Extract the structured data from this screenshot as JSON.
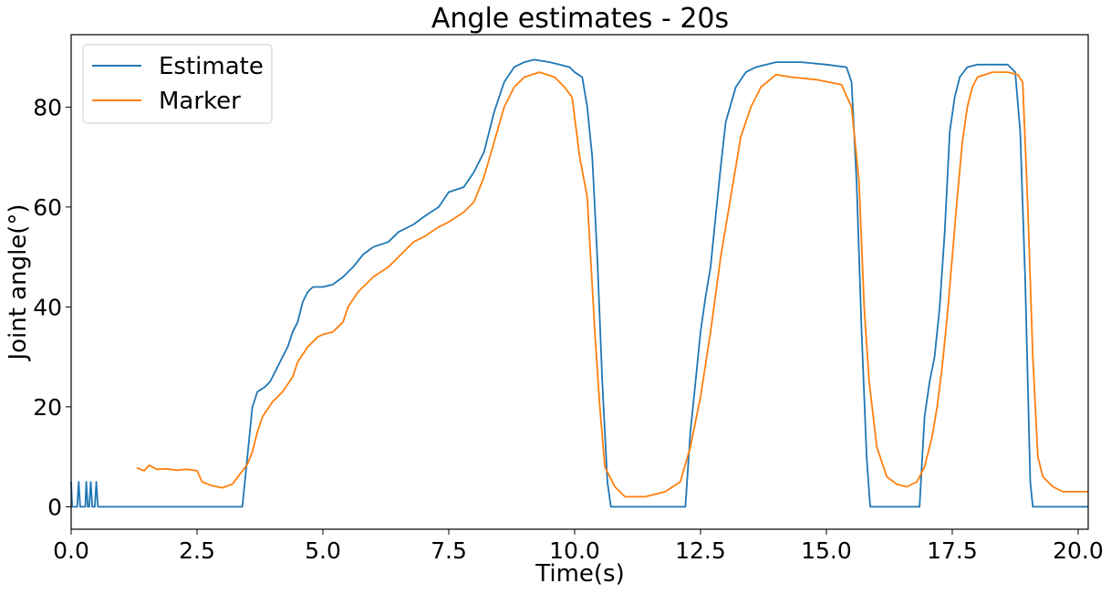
{
  "chart_data": {
    "type": "line",
    "title": "Angle estimates - 20s",
    "xlabel": "Time(s)",
    "ylabel": "Joint angle(°)",
    "xlim": [
      0,
      20.2
    ],
    "ylim": [
      -4.5,
      94.5
    ],
    "xticks": [
      0.0,
      2.5,
      5.0,
      7.5,
      10.0,
      12.5,
      15.0,
      17.5,
      20.0
    ],
    "xtick_labels": [
      "0.0",
      "2.5",
      "5.0",
      "7.5",
      "10.0",
      "12.5",
      "15.0",
      "17.5",
      "20.0"
    ],
    "yticks": [
      0,
      20,
      40,
      60,
      80
    ],
    "ytick_labels": [
      "0",
      "20",
      "40",
      "60",
      "80"
    ],
    "grid": false,
    "legend_position": "top-left",
    "series": [
      {
        "name": "Estimate",
        "color": "#1f77b4",
        "points": [
          [
            0.0,
            5
          ],
          [
            0.02,
            0
          ],
          [
            0.12,
            0
          ],
          [
            0.15,
            5
          ],
          [
            0.18,
            0
          ],
          [
            0.28,
            0
          ],
          [
            0.3,
            5
          ],
          [
            0.33,
            0
          ],
          [
            0.36,
            0
          ],
          [
            0.39,
            5
          ],
          [
            0.42,
            0
          ],
          [
            0.47,
            0
          ],
          [
            0.5,
            5
          ],
          [
            0.53,
            0
          ],
          [
            3.4,
            0
          ],
          [
            3.5,
            10
          ],
          [
            3.6,
            20
          ],
          [
            3.7,
            23
          ],
          [
            3.85,
            24
          ],
          [
            3.95,
            25
          ],
          [
            4.0,
            26
          ],
          [
            4.1,
            28
          ],
          [
            4.2,
            30
          ],
          [
            4.3,
            32
          ],
          [
            4.4,
            35
          ],
          [
            4.5,
            37
          ],
          [
            4.6,
            41
          ],
          [
            4.7,
            43
          ],
          [
            4.8,
            44
          ],
          [
            5.0,
            44
          ],
          [
            5.2,
            44.5
          ],
          [
            5.4,
            46
          ],
          [
            5.6,
            48
          ],
          [
            5.8,
            50.5
          ],
          [
            6.0,
            52
          ],
          [
            6.3,
            53
          ],
          [
            6.5,
            55
          ],
          [
            6.8,
            56.5
          ],
          [
            7.0,
            58
          ],
          [
            7.3,
            60
          ],
          [
            7.5,
            63
          ],
          [
            7.8,
            64
          ],
          [
            8.0,
            67
          ],
          [
            8.2,
            71
          ],
          [
            8.4,
            79
          ],
          [
            8.6,
            85
          ],
          [
            8.8,
            88
          ],
          [
            9.0,
            89
          ],
          [
            9.2,
            89.5
          ],
          [
            9.5,
            89
          ],
          [
            9.7,
            88.5
          ],
          [
            9.9,
            88
          ],
          [
            10.0,
            87
          ],
          [
            10.15,
            86
          ],
          [
            10.25,
            80
          ],
          [
            10.35,
            70
          ],
          [
            10.45,
            50
          ],
          [
            10.55,
            25
          ],
          [
            10.65,
            5
          ],
          [
            10.72,
            0
          ],
          [
            12.2,
            0
          ],
          [
            12.3,
            15
          ],
          [
            12.4,
            25
          ],
          [
            12.5,
            35
          ],
          [
            12.6,
            42
          ],
          [
            12.7,
            48
          ],
          [
            12.8,
            58
          ],
          [
            12.9,
            68
          ],
          [
            13.0,
            77
          ],
          [
            13.2,
            84
          ],
          [
            13.4,
            87
          ],
          [
            13.6,
            88
          ],
          [
            14.0,
            89
          ],
          [
            14.5,
            89
          ],
          [
            15.0,
            88.5
          ],
          [
            15.4,
            88
          ],
          [
            15.5,
            85
          ],
          [
            15.6,
            65
          ],
          [
            15.7,
            35
          ],
          [
            15.8,
            10
          ],
          [
            15.87,
            0
          ],
          [
            16.85,
            0
          ],
          [
            16.95,
            18
          ],
          [
            17.05,
            25
          ],
          [
            17.15,
            30
          ],
          [
            17.25,
            40
          ],
          [
            17.35,
            55
          ],
          [
            17.45,
            75
          ],
          [
            17.55,
            82
          ],
          [
            17.65,
            86
          ],
          [
            17.8,
            88
          ],
          [
            18.0,
            88.5
          ],
          [
            18.3,
            88.5
          ],
          [
            18.6,
            88.5
          ],
          [
            18.75,
            87
          ],
          [
            18.85,
            75
          ],
          [
            18.95,
            45
          ],
          [
            19.05,
            5
          ],
          [
            19.1,
            0
          ],
          [
            20.2,
            0
          ]
        ]
      },
      {
        "name": "Marker",
        "color": "#ff7f0e",
        "points": [
          [
            1.3,
            7.8
          ],
          [
            1.45,
            7.2
          ],
          [
            1.55,
            8.3
          ],
          [
            1.7,
            7.5
          ],
          [
            1.9,
            7.6
          ],
          [
            2.1,
            7.3
          ],
          [
            2.3,
            7.5
          ],
          [
            2.5,
            7.2
          ],
          [
            2.6,
            5
          ],
          [
            2.8,
            4.2
          ],
          [
            3.0,
            3.8
          ],
          [
            3.2,
            4.5
          ],
          [
            3.35,
            6.5
          ],
          [
            3.5,
            8.5
          ],
          [
            3.6,
            11
          ],
          [
            3.7,
            15
          ],
          [
            3.8,
            18
          ],
          [
            3.9,
            19.5
          ],
          [
            4.0,
            21
          ],
          [
            4.2,
            23
          ],
          [
            4.4,
            26
          ],
          [
            4.5,
            29
          ],
          [
            4.7,
            32
          ],
          [
            4.9,
            34
          ],
          [
            5.0,
            34.5
          ],
          [
            5.2,
            35
          ],
          [
            5.4,
            37
          ],
          [
            5.5,
            40
          ],
          [
            5.7,
            43
          ],
          [
            5.9,
            45
          ],
          [
            6.0,
            46
          ],
          [
            6.3,
            48
          ],
          [
            6.5,
            50
          ],
          [
            6.8,
            53
          ],
          [
            7.0,
            54
          ],
          [
            7.3,
            56
          ],
          [
            7.5,
            57
          ],
          [
            7.8,
            59
          ],
          [
            8.0,
            61
          ],
          [
            8.2,
            66
          ],
          [
            8.4,
            73
          ],
          [
            8.6,
            80
          ],
          [
            8.8,
            84
          ],
          [
            9.0,
            86
          ],
          [
            9.3,
            87
          ],
          [
            9.6,
            86
          ],
          [
            9.8,
            84
          ],
          [
            9.95,
            82
          ],
          [
            10.1,
            70
          ],
          [
            10.25,
            62
          ],
          [
            10.4,
            35
          ],
          [
            10.5,
            20
          ],
          [
            10.6,
            8
          ],
          [
            10.8,
            4
          ],
          [
            11.0,
            2
          ],
          [
            11.4,
            2
          ],
          [
            11.8,
            3
          ],
          [
            12.1,
            5
          ],
          [
            12.3,
            12
          ],
          [
            12.5,
            22
          ],
          [
            12.7,
            35
          ],
          [
            12.9,
            50
          ],
          [
            13.1,
            62
          ],
          [
            13.3,
            74
          ],
          [
            13.5,
            80
          ],
          [
            13.7,
            84
          ],
          [
            14.0,
            86.5
          ],
          [
            14.3,
            86
          ],
          [
            14.8,
            85.5
          ],
          [
            15.3,
            84.5
          ],
          [
            15.5,
            80
          ],
          [
            15.65,
            65
          ],
          [
            15.75,
            40
          ],
          [
            15.85,
            25
          ],
          [
            16.0,
            12
          ],
          [
            16.2,
            6
          ],
          [
            16.4,
            4.5
          ],
          [
            16.6,
            4
          ],
          [
            16.8,
            5
          ],
          [
            16.95,
            8
          ],
          [
            17.1,
            14
          ],
          [
            17.2,
            20
          ],
          [
            17.3,
            28
          ],
          [
            17.4,
            38
          ],
          [
            17.5,
            50
          ],
          [
            17.6,
            62
          ],
          [
            17.7,
            73
          ],
          [
            17.8,
            80
          ],
          [
            17.9,
            84
          ],
          [
            18.0,
            86
          ],
          [
            18.3,
            87
          ],
          [
            18.6,
            87
          ],
          [
            18.8,
            86.5
          ],
          [
            18.9,
            85
          ],
          [
            19.0,
            60
          ],
          [
            19.1,
            30
          ],
          [
            19.2,
            10
          ],
          [
            19.3,
            6
          ],
          [
            19.5,
            4
          ],
          [
            19.7,
            3
          ],
          [
            20.0,
            3
          ],
          [
            20.2,
            3
          ]
        ]
      }
    ]
  }
}
